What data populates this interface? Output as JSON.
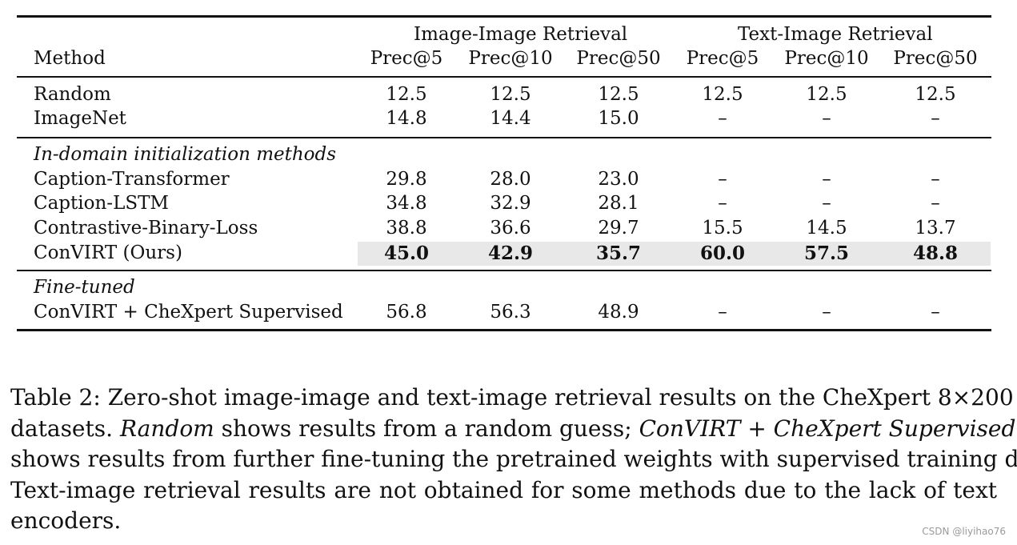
{
  "table": {
    "group_headers": [
      "Image-Image Retrieval",
      "Text-Image Retrieval"
    ],
    "columns": [
      "Method",
      "Prec@5",
      "Prec@10",
      "Prec@50",
      "Prec@5",
      "Prec@10",
      "Prec@50"
    ],
    "sections": [
      {
        "title": "",
        "rows": [
          {
            "method": "Random",
            "values": [
              "12.5",
              "12.5",
              "12.5",
              "12.5",
              "12.5",
              "12.5"
            ]
          },
          {
            "method": "ImageNet",
            "values": [
              "14.8",
              "14.4",
              "15.0",
              "–",
              "–",
              "–"
            ]
          }
        ]
      },
      {
        "title": "In-domain initialization methods",
        "rows": [
          {
            "method": "Caption-Transformer",
            "values": [
              "29.8",
              "28.0",
              "23.0",
              "–",
              "–",
              "–"
            ]
          },
          {
            "method": "Caption-LSTM",
            "values": [
              "34.8",
              "32.9",
              "28.1",
              "–",
              "–",
              "–"
            ]
          },
          {
            "method": "Contrastive-Binary-Loss",
            "values": [
              "38.8",
              "36.6",
              "29.7",
              "15.5",
              "14.5",
              "13.7"
            ]
          },
          {
            "method": "ConVIRT (Ours)",
            "values": [
              "45.0",
              "42.9",
              "35.7",
              "60.0",
              "57.5",
              "48.8"
            ]
          }
        ]
      },
      {
        "title": "Fine-tuned",
        "rows": [
          {
            "method": "ConVIRT + CheXpert Supervised",
            "values": [
              "56.8",
              "56.3",
              "48.9",
              "–",
              "–",
              "–"
            ]
          }
        ]
      }
    ]
  },
  "caption": {
    "l1a": "Table 2: Zero-shot image-image and text-image retrieval results on the CheXpert 8×200",
    "l2a": "datasets. ",
    "l2b": "Random",
    "l2c": " shows results from a random guess; ",
    "l2d": "ConVIRT + CheXpert Supervised",
    "l3": "shows results from further fine-tuning the pretrained weights with supervised training data.",
    "l4": "Text-image retrieval results are not obtained for some methods due to the lack of text",
    "l5": "encoders."
  },
  "watermark": "CSDN @liyihao76"
}
